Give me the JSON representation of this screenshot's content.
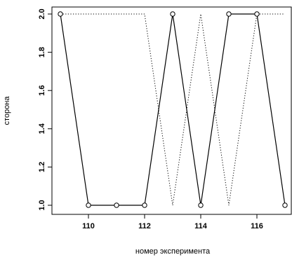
{
  "chart_data": {
    "type": "line",
    "title": "",
    "xlabel": "номер эксперимента",
    "ylabel": "сторона",
    "xlim": [
      109,
      117
    ],
    "ylim": [
      1.0,
      2.0
    ],
    "x_ticks": [
      110,
      112,
      114,
      116
    ],
    "y_ticks": [
      1.0,
      1.2,
      1.4,
      1.6,
      1.8,
      2.0
    ],
    "grid": false,
    "legend": "none",
    "x": [
      109,
      110,
      111,
      112,
      113,
      114,
      115,
      116,
      117
    ],
    "series": [
      {
        "style": "solid",
        "markers": "open-circle",
        "color": "#000000",
        "values": [
          2,
          1,
          1,
          1,
          2,
          1,
          2,
          2,
          1
        ]
      },
      {
        "style": "dotted",
        "markers": "none",
        "color": "#000000",
        "values": [
          2,
          2,
          2,
          2,
          1,
          2,
          1,
          2,
          2
        ]
      }
    ]
  }
}
